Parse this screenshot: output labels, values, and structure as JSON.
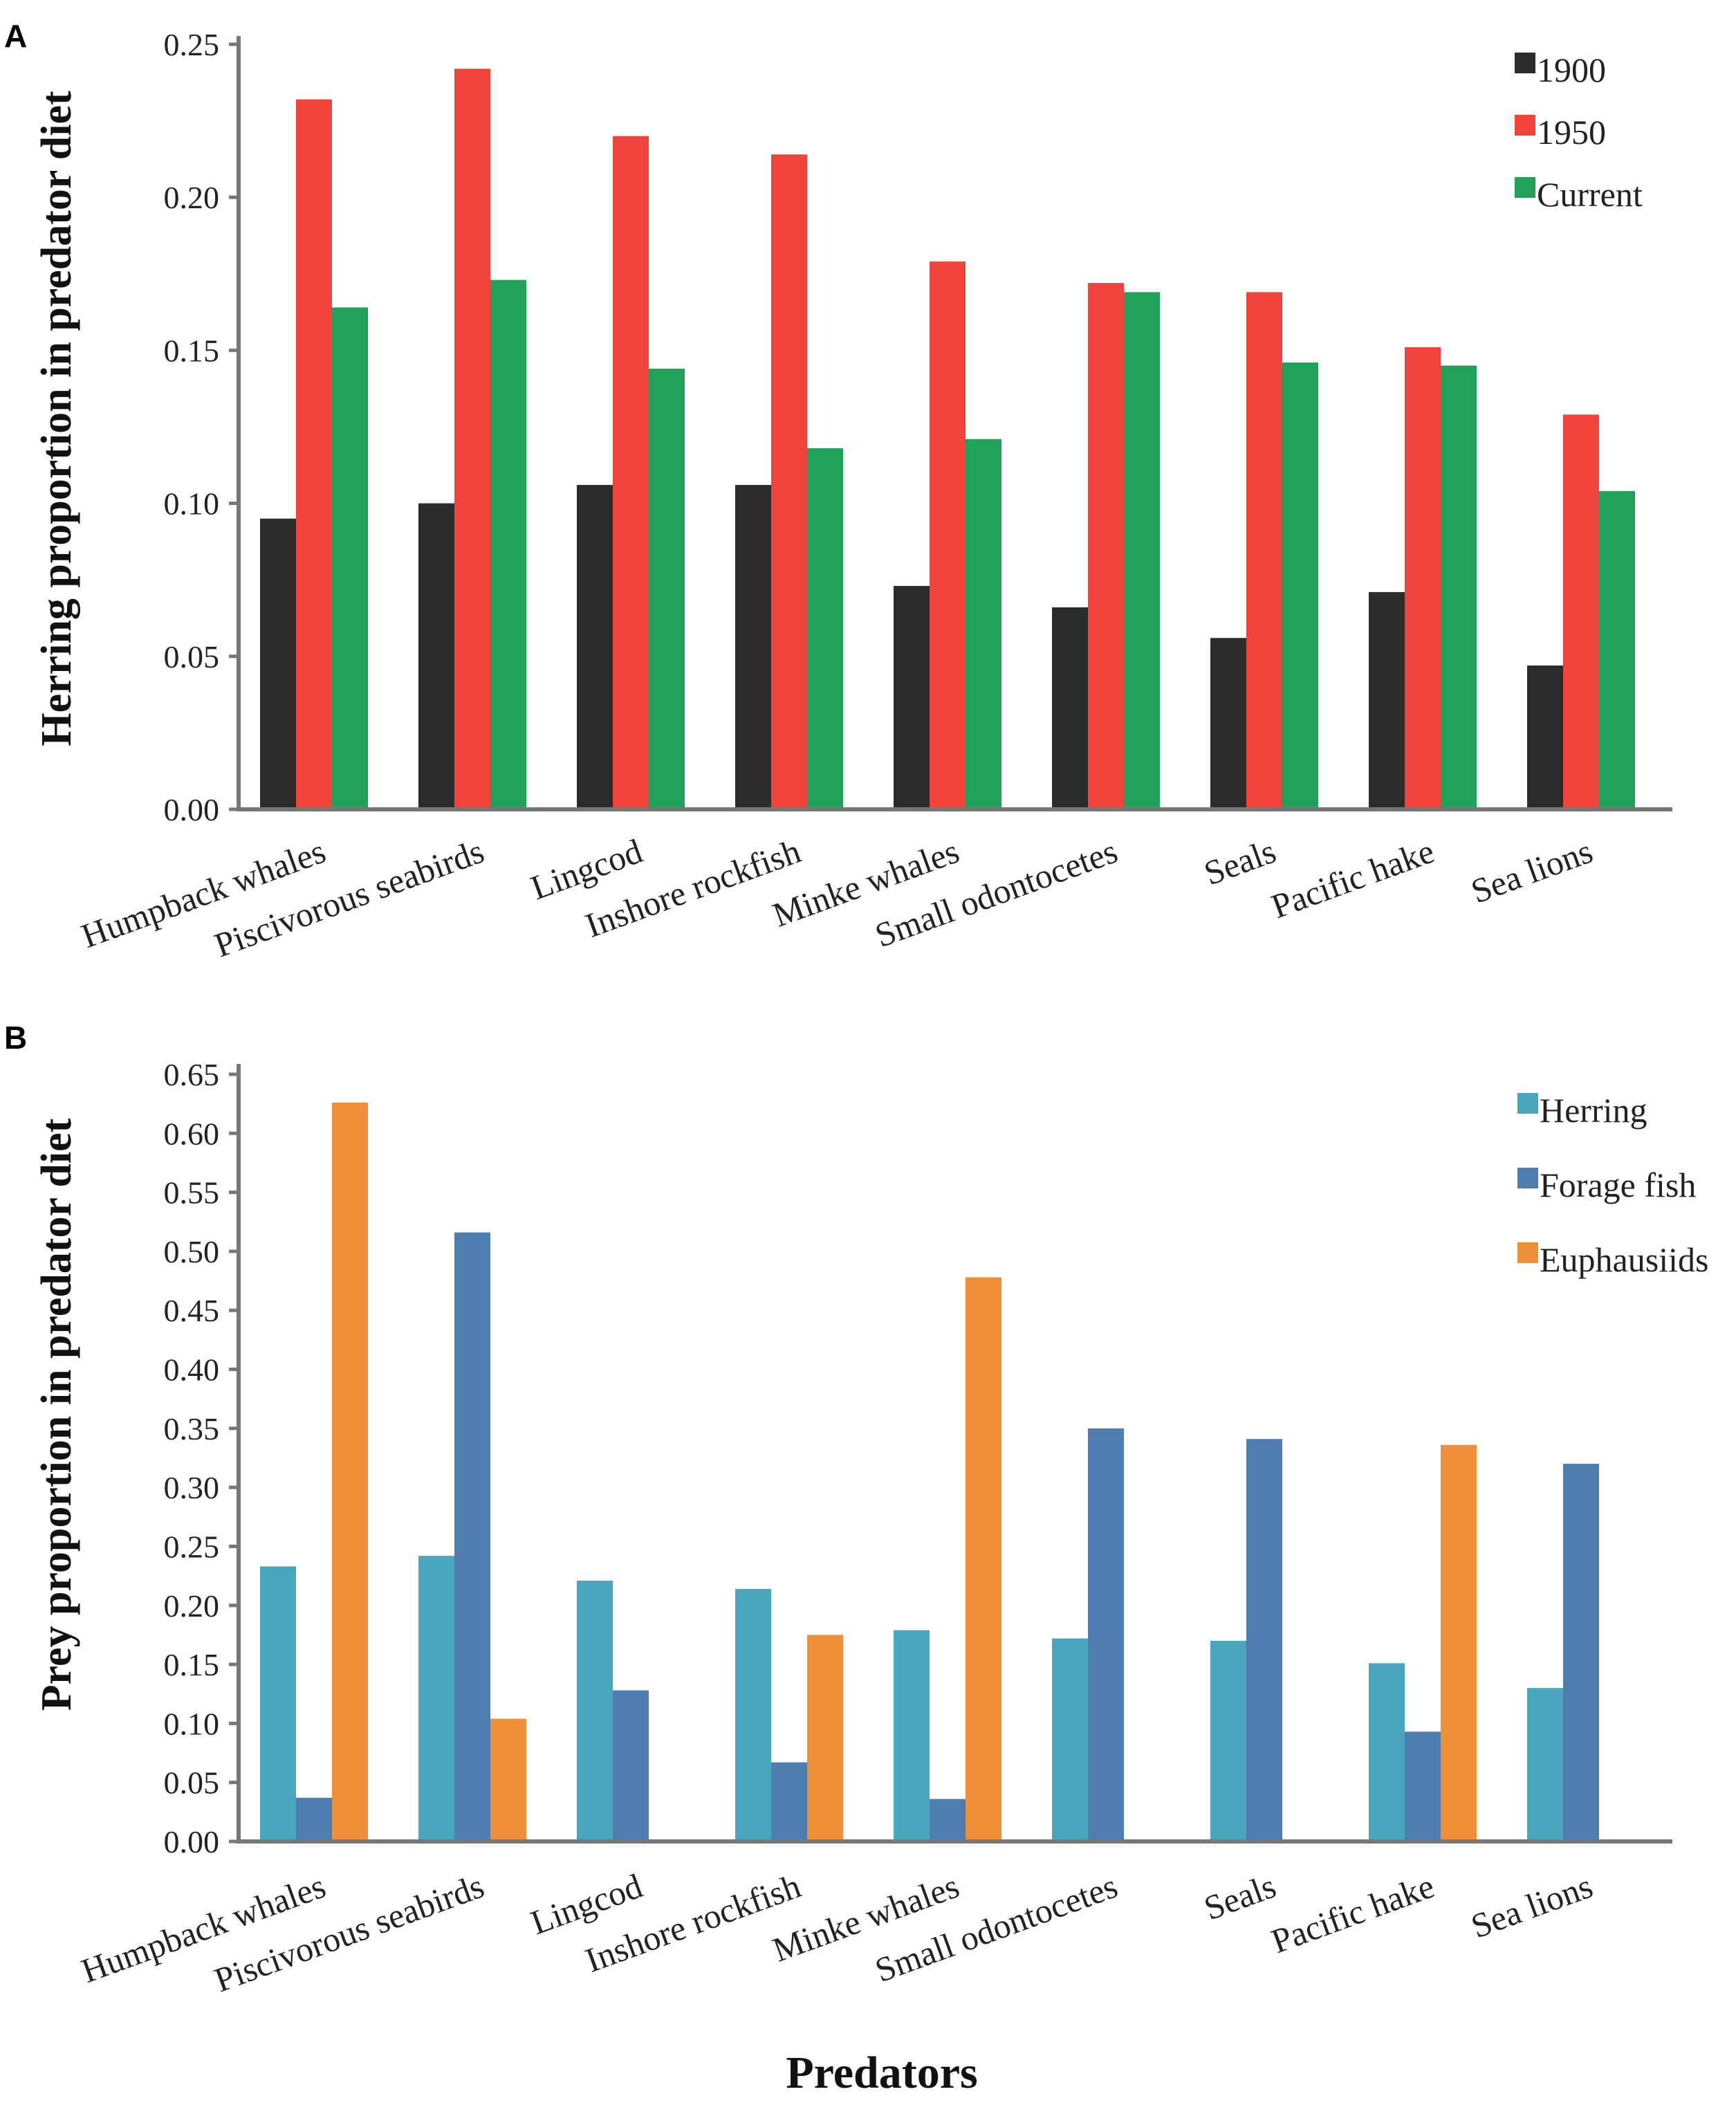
{
  "chart_data": [
    {
      "panel": "A",
      "type": "bar",
      "title": "",
      "xlabel": "",
      "ylabel": "Herring proportion in predator diet",
      "ylim": [
        0,
        0.25
      ],
      "yticks": [
        "0.00",
        "0.05",
        "0.10",
        "0.15",
        "0.20",
        "0.25"
      ],
      "grid": false,
      "legend_position": "top-right",
      "categories": [
        "Humpback whales",
        "Piscivorous seabirds",
        "Lingcod",
        "Inshore rockfish",
        "Minke whales",
        "Small odontocetes",
        "Seals",
        "Pacific hake",
        "Sea lions"
      ],
      "series": [
        {
          "name": "1900",
          "color": "#2b2b2b",
          "values": [
            0.095,
            0.1,
            0.106,
            0.106,
            0.073,
            0.066,
            0.056,
            0.071,
            0.047
          ]
        },
        {
          "name": "1950",
          "color": "#ef433c",
          "values": [
            0.232,
            0.242,
            0.22,
            0.214,
            0.179,
            0.172,
            0.169,
            0.151,
            0.129
          ]
        },
        {
          "name": "Current",
          "color": "#21a05a",
          "values": [
            0.164,
            0.173,
            0.144,
            0.118,
            0.121,
            0.169,
            0.146,
            0.145,
            0.104
          ]
        }
      ]
    },
    {
      "panel": "B",
      "type": "bar",
      "title": "",
      "xlabel": "Predators",
      "ylabel": "Prey proportion in predator diet",
      "ylim": [
        0,
        0.65
      ],
      "yticks": [
        "0.00",
        "0.05",
        "0.10",
        "0.15",
        "0.20",
        "0.25",
        "0.30",
        "0.35",
        "0.40",
        "0.45",
        "0.50",
        "0.55",
        "0.60",
        "0.65"
      ],
      "grid": false,
      "legend_position": "top-right",
      "categories": [
        "Humpback whales",
        "Piscivorous seabirds",
        "Lingcod",
        "Inshore rockfish",
        "Minke whales",
        "Small odontocetes",
        "Seals",
        "Pacific hake",
        "Sea lions"
      ],
      "series": [
        {
          "name": "Herring",
          "color": "#4aa6bc",
          "values": [
            0.233,
            0.242,
            0.221,
            0.214,
            0.179,
            0.172,
            0.17,
            0.151,
            0.13
          ]
        },
        {
          "name": "Forage fish",
          "color": "#4f7db0",
          "values": [
            0.037,
            0.516,
            0.128,
            0.067,
            0.036,
            0.35,
            0.341,
            0.093,
            0.32
          ]
        },
        {
          "name": "Euphausiids",
          "color": "#f08f3a",
          "values": [
            0.626,
            0.104,
            0.0,
            0.175,
            0.478,
            0.0,
            0.0,
            0.336,
            0.0
          ]
        }
      ]
    }
  ]
}
